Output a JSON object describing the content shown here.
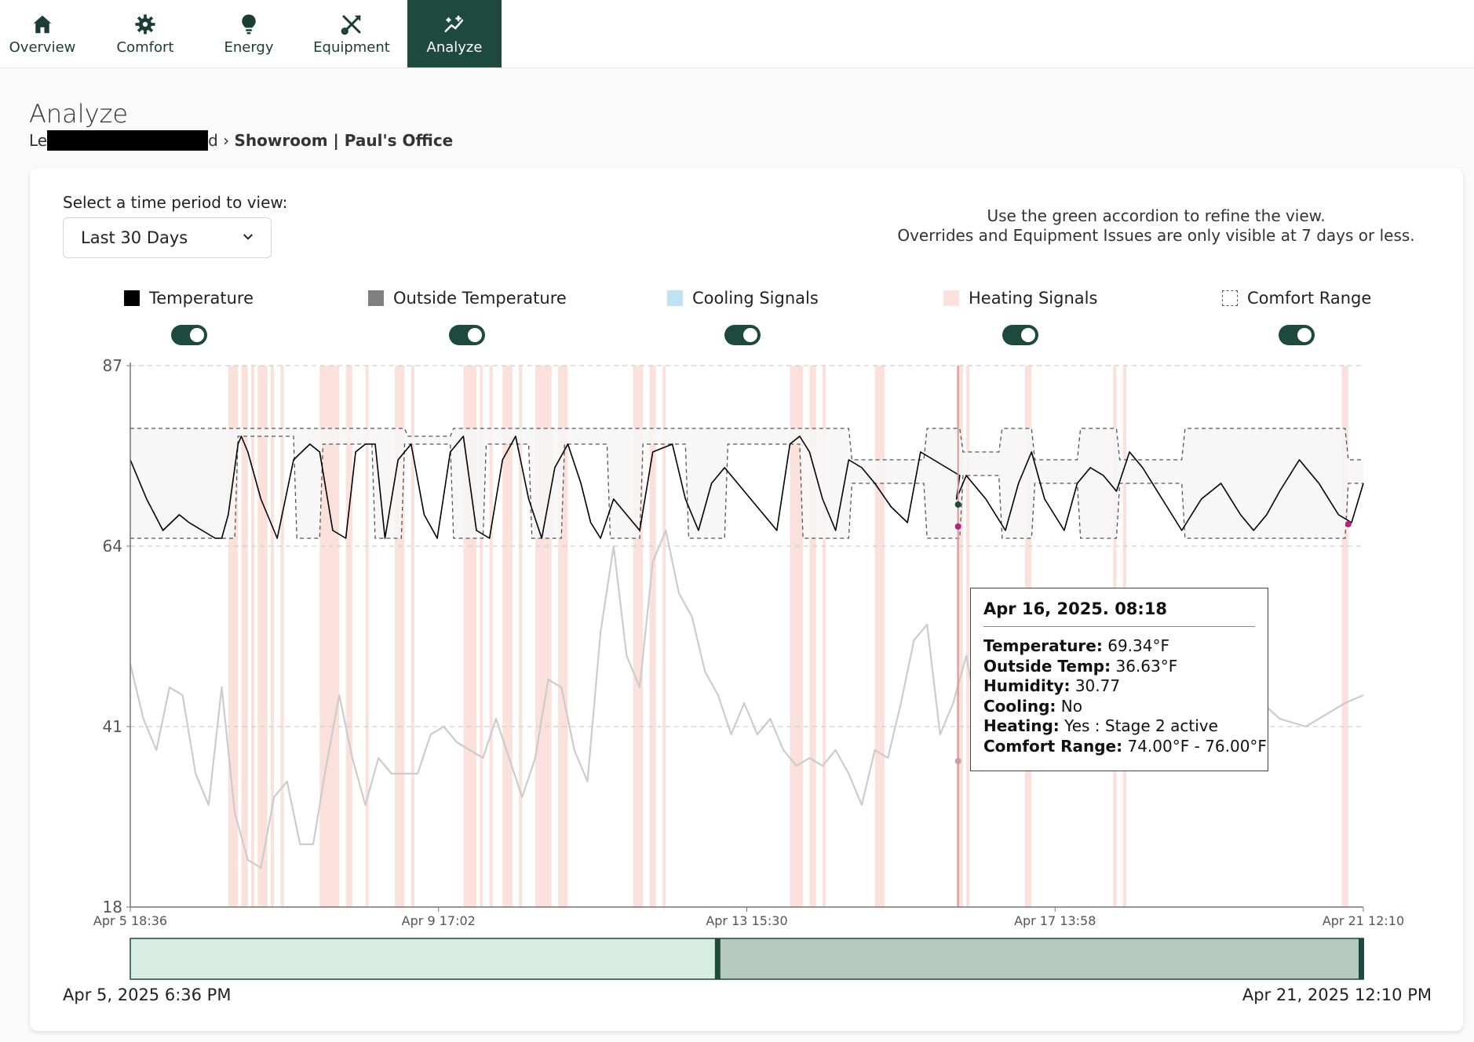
{
  "nav": {
    "items": [
      {
        "label": "Overview",
        "icon": "home-icon"
      },
      {
        "label": "Comfort",
        "icon": "gear-icon"
      },
      {
        "label": "Energy",
        "icon": "lightbulb-icon"
      },
      {
        "label": "Equipment",
        "icon": "tools-icon"
      },
      {
        "label": "Analyze",
        "icon": "sparkle-chart-icon"
      }
    ],
    "active": "Analyze"
  },
  "page": {
    "title": "Analyze",
    "breadcrumb_prefix": "Le",
    "breadcrumb_suffix": "d",
    "breadcrumb_sep": "›",
    "breadcrumb_current": "Showroom | Paul's Office"
  },
  "controls": {
    "period_label": "Select a time period to view:",
    "period_value": "Last 30 Days",
    "hint_line1": "Use the green accordion to refine the view.",
    "hint_line2": "Overrides and Equipment Issues are only visible at 7 days or less."
  },
  "legend": [
    {
      "label": "Temperature",
      "color": "#000000",
      "enabled": true
    },
    {
      "label": "Outside Temperature",
      "color": "#808080",
      "enabled": true
    },
    {
      "label": "Cooling Signals",
      "color": "#bfe3f2",
      "enabled": true
    },
    {
      "label": "Heating Signals",
      "color": "#fde1dc",
      "enabled": true
    },
    {
      "label": "Comfort Range",
      "color": "#ffffff",
      "enabled": true
    }
  ],
  "colors": {
    "accent": "#1d4a3c",
    "heating": "#f8c9c0",
    "outside": "#c8c8c8",
    "comfort_fill": "#f6f6f6",
    "range_unselected": "#d7ede3",
    "range_selected": "#b5c9bf"
  },
  "chart_data": {
    "type": "line",
    "ylim": [
      18,
      87
    ],
    "y_ticks": [
      "87",
      "64",
      "41",
      "18"
    ],
    "x_ticks": [
      "Apr 5 18:36",
      "Apr 9 17:02",
      "Apr 13 15:30",
      "Apr 17 13:58",
      "Apr 21 12:10"
    ],
    "x_unit": "hours since Apr 5 18:36",
    "x_range": [
      0,
      377.6
    ],
    "series": [
      {
        "name": "Temperature",
        "x": [
          0,
          5,
          10,
          15,
          18,
          22,
          26,
          28,
          30,
          33,
          34,
          36,
          40,
          45,
          50,
          55,
          58,
          62,
          66,
          69,
          72,
          75,
          78,
          82,
          86,
          90,
          94,
          98,
          102,
          106,
          110,
          114,
          118,
          122,
          126,
          130,
          134,
          138,
          141,
          144,
          148,
          152,
          156,
          160,
          166,
          170,
          174,
          178,
          182,
          186,
          190,
          194,
          198,
          202,
          205,
          208,
          212,
          216,
          220,
          224,
          228,
          233,
          238,
          242,
          246,
          250,
          254,
          253,
          256,
          262,
          268,
          272,
          276,
          280,
          286,
          290,
          294,
          298,
          302,
          306,
          310,
          316,
          322,
          328,
          334,
          340,
          344,
          348,
          352,
          358,
          364,
          370,
          374,
          377.6
        ],
        "y": [
          75,
          70,
          66,
          68,
          67,
          66,
          65,
          65,
          68,
          77,
          78,
          76,
          70,
          65,
          75,
          77,
          76,
          66,
          65,
          76,
          77,
          77,
          65,
          75,
          77,
          68,
          65,
          76,
          78,
          66,
          65,
          75,
          78,
          70,
          65,
          74,
          77,
          72,
          67,
          65,
          70,
          68,
          66,
          76,
          77,
          70,
          66,
          72,
          74,
          72,
          70,
          68,
          66,
          77,
          78,
          76,
          70,
          66,
          75,
          74,
          72,
          69,
          67,
          76,
          75,
          74,
          73,
          70,
          73,
          70,
          66,
          72,
          76,
          70,
          66,
          72,
          74,
          73,
          71,
          76,
          74,
          70,
          66,
          70,
          72,
          68,
          66,
          68,
          71,
          75,
          72,
          68,
          67,
          72
        ],
        "color": "#000000"
      },
      {
        "name": "Outside Temperature",
        "x": [
          0,
          4,
          8,
          12,
          16,
          20,
          24,
          28,
          32,
          36,
          40,
          44,
          48,
          52,
          56,
          60,
          64,
          68,
          72,
          76,
          80,
          84,
          88,
          92,
          96,
          100,
          104,
          108,
          112,
          116,
          120,
          124,
          128,
          132,
          136,
          140,
          144,
          148,
          152,
          156,
          160,
          164,
          168,
          172,
          176,
          180,
          184,
          188,
          192,
          196,
          200,
          204,
          208,
          212,
          216,
          220,
          224,
          228,
          232,
          236,
          240,
          244,
          248,
          252,
          256,
          260,
          264,
          268,
          272,
          276,
          280,
          284,
          288,
          292,
          296,
          300,
          304,
          308,
          312,
          316,
          320,
          324,
          328,
          336,
          344,
          352,
          360,
          368,
          372,
          377.6
        ],
        "y": [
          49,
          42,
          38,
          46,
          45,
          35,
          31,
          46,
          30,
          24,
          23,
          32,
          34,
          26,
          26,
          36,
          45,
          37,
          31,
          37,
          35,
          35,
          35,
          40,
          41,
          39,
          38,
          37,
          42,
          37,
          32,
          37,
          47,
          46,
          38,
          34,
          53,
          64,
          50,
          46,
          62,
          66,
          58,
          55,
          48,
          45,
          40,
          44,
          40,
          42,
          38,
          36,
          37,
          36,
          38,
          35,
          31,
          38,
          37,
          44,
          52,
          54,
          40,
          44,
          50,
          41,
          38,
          42,
          49,
          52,
          48,
          44,
          39,
          41,
          42,
          46,
          48,
          44,
          40,
          43,
          41,
          42,
          46,
          50,
          45,
          42,
          41,
          43,
          44,
          45
        ],
        "color": "#cccccc"
      }
    ],
    "comfort_range_upper": [
      [
        0,
        79
      ],
      [
        84,
        79
      ],
      [
        85,
        78
      ],
      [
        98,
        78
      ],
      [
        99,
        79
      ],
      [
        220,
        79
      ],
      [
        221,
        75
      ],
      [
        243,
        75
      ],
      [
        244,
        79
      ],
      [
        254,
        79
      ],
      [
        255,
        76
      ],
      [
        266,
        76
      ],
      [
        267,
        79
      ],
      [
        276,
        79
      ],
      [
        277,
        75
      ],
      [
        290,
        75
      ],
      [
        291,
        79
      ],
      [
        302,
        79
      ],
      [
        303,
        75
      ],
      [
        322,
        75
      ],
      [
        323,
        79
      ],
      [
        372,
        79
      ],
      [
        373,
        75
      ],
      [
        377.6,
        75
      ]
    ],
    "comfort_range_lower": [
      [
        0,
        65
      ],
      [
        32,
        65
      ],
      [
        33,
        78
      ],
      [
        50,
        78
      ],
      [
        51,
        65
      ],
      [
        58,
        65
      ],
      [
        59,
        77
      ],
      [
        74,
        77
      ],
      [
        75,
        65
      ],
      [
        83,
        65
      ],
      [
        84,
        77
      ],
      [
        98,
        77
      ],
      [
        99,
        65
      ],
      [
        108,
        65
      ],
      [
        109,
        77
      ],
      [
        122,
        77
      ],
      [
        123,
        65
      ],
      [
        132,
        65
      ],
      [
        133,
        77
      ],
      [
        146,
        77
      ],
      [
        147,
        65
      ],
      [
        156,
        65
      ],
      [
        157,
        77
      ],
      [
        170,
        77
      ],
      [
        171,
        65
      ],
      [
        182,
        65
      ],
      [
        183,
        77
      ],
      [
        205,
        77
      ],
      [
        206,
        65
      ],
      [
        220,
        65
      ],
      [
        221,
        72
      ],
      [
        243,
        72
      ],
      [
        244,
        65
      ],
      [
        254,
        65
      ],
      [
        255,
        73
      ],
      [
        266,
        73
      ],
      [
        267,
        65
      ],
      [
        276,
        65
      ],
      [
        277,
        72
      ],
      [
        290,
        72
      ],
      [
        291,
        65
      ],
      [
        302,
        65
      ],
      [
        303,
        72
      ],
      [
        322,
        72
      ],
      [
        323,
        65
      ],
      [
        372,
        65
      ],
      [
        373,
        72
      ],
      [
        377.6,
        72
      ]
    ],
    "heating_bands": [
      [
        30,
        33
      ],
      [
        34,
        36
      ],
      [
        37,
        38
      ],
      [
        39,
        42
      ],
      [
        43,
        44
      ],
      [
        46,
        47
      ],
      [
        58,
        64
      ],
      [
        66,
        68
      ],
      [
        72,
        73
      ],
      [
        81,
        84
      ],
      [
        86,
        87
      ],
      [
        102,
        106
      ],
      [
        107,
        108
      ],
      [
        110,
        111
      ],
      [
        114,
        117
      ],
      [
        119,
        120
      ],
      [
        124,
        129
      ],
      [
        131,
        134
      ],
      [
        154,
        157
      ],
      [
        159,
        161
      ],
      [
        163,
        164
      ],
      [
        202,
        206
      ],
      [
        208,
        210
      ],
      [
        212,
        213
      ],
      [
        228,
        231
      ],
      [
        253,
        255
      ],
      [
        256,
        257
      ],
      [
        274,
        276
      ],
      [
        301,
        302
      ],
      [
        304,
        305
      ],
      [
        371,
        373
      ]
    ],
    "cursor_x": 253.5
  },
  "tooltip": {
    "title": "Apr 16, 2025. 08:18",
    "rows": [
      {
        "label": "Temperature:",
        "value": "69.34°F"
      },
      {
        "label": "Outside Temp:",
        "value": "36.63°F"
      },
      {
        "label": "Humidity:",
        "value": "30.77"
      },
      {
        "label": "Cooling:",
        "value": "No"
      },
      {
        "label": "Heating:",
        "value": "Yes : Stage 2 active"
      },
      {
        "label": "Comfort Range:",
        "value": "74.00°F - 76.00°F"
      }
    ]
  },
  "range": {
    "start_label": "Apr 5, 2025 6:36 PM",
    "end_label": "Apr 21, 2025 12:10 PM",
    "selected_start_fraction": 0.476,
    "selected_end_fraction": 1.0
  }
}
